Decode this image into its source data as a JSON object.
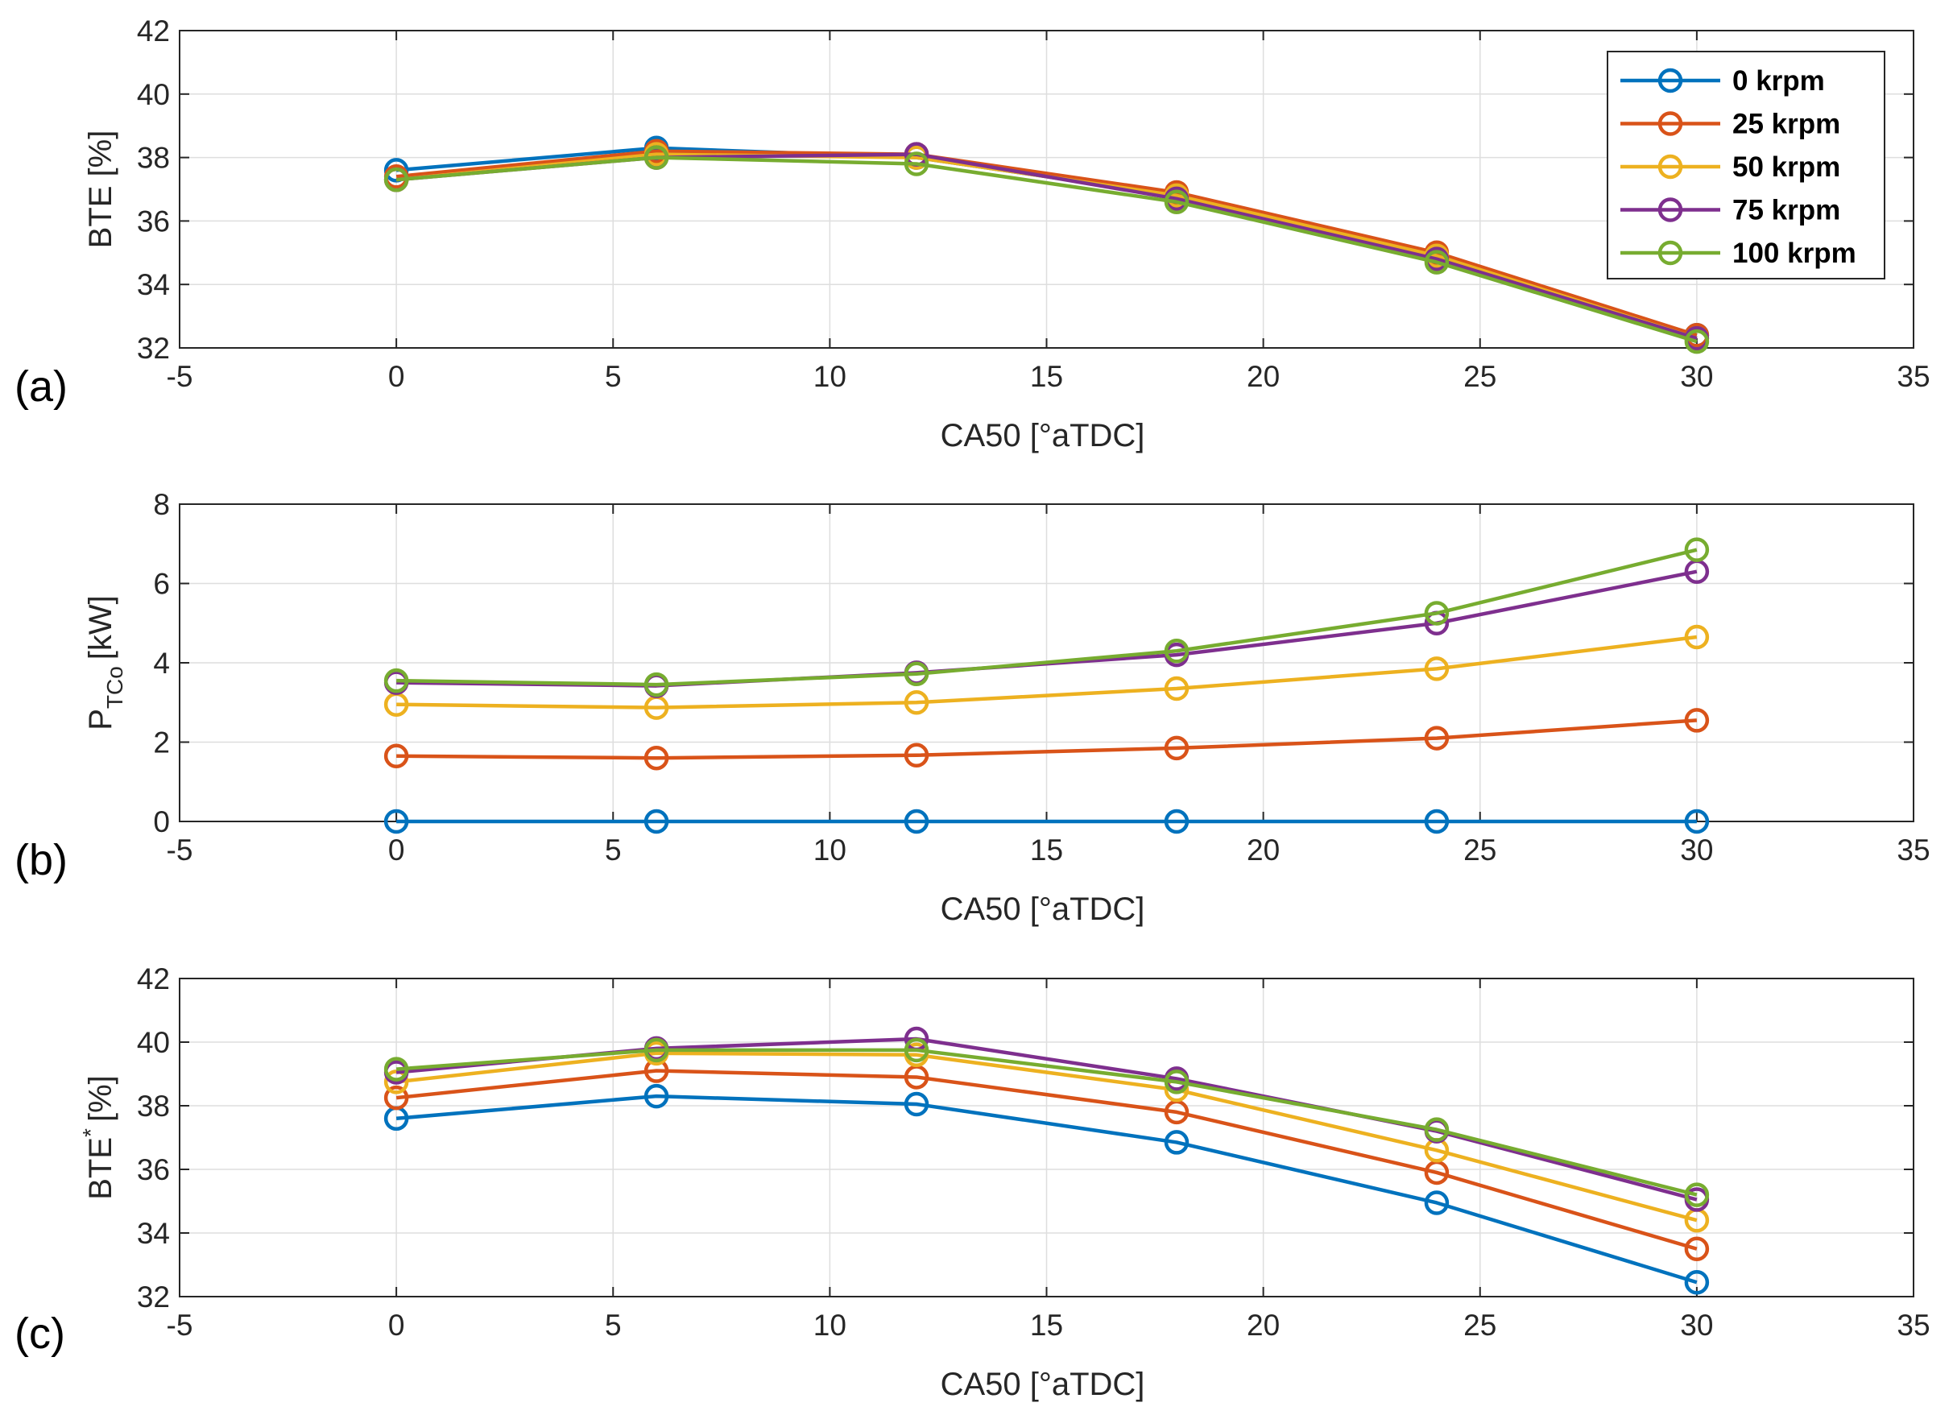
{
  "chart_data": [
    {
      "type": "line",
      "panel_label": "(a)",
      "xlabel": "CA50 [°aTDC]",
      "ylabel": "BTE [%]",
      "xlim": [
        -5,
        35
      ],
      "ylim": [
        32,
        42
      ],
      "xticks": [
        -5,
        0,
        5,
        10,
        15,
        20,
        25,
        30,
        35
      ],
      "yticks": [
        32,
        34,
        36,
        38,
        40,
        42
      ],
      "grid": true,
      "legend": "top-right",
      "x": [
        0,
        6,
        12,
        18,
        24,
        30
      ],
      "series": [
        {
          "name": "0 krpm",
          "values": [
            37.6,
            38.3,
            38.0,
            36.8,
            34.9,
            32.4
          ]
        },
        {
          "name": "25 krpm",
          "values": [
            37.4,
            38.2,
            38.1,
            36.9,
            35.0,
            32.4
          ]
        },
        {
          "name": "50 krpm",
          "values": [
            37.3,
            38.1,
            38.0,
            36.8,
            34.9,
            32.3
          ]
        },
        {
          "name": "75 krpm",
          "values": [
            37.3,
            38.0,
            38.1,
            36.7,
            34.8,
            32.3
          ]
        },
        {
          "name": "100 krpm",
          "values": [
            37.3,
            38.0,
            37.8,
            36.6,
            34.7,
            32.2
          ]
        }
      ]
    },
    {
      "type": "line",
      "panel_label": "(b)",
      "xlabel": "CA50 [°aTDC]",
      "ylabel_main": "P",
      "ylabel_sub": "TCo",
      "ylabel_unit": "[kW]",
      "xlim": [
        -5,
        35
      ],
      "ylim": [
        0,
        8
      ],
      "xticks": [
        -5,
        0,
        5,
        10,
        15,
        20,
        25,
        30,
        35
      ],
      "yticks": [
        0,
        2,
        4,
        6,
        8
      ],
      "grid": true,
      "x": [
        0,
        6,
        12,
        18,
        24,
        30
      ],
      "series": [
        {
          "name": "0 krpm",
          "values": [
            0,
            0,
            0,
            0,
            0,
            0
          ]
        },
        {
          "name": "25 krpm",
          "values": [
            1.65,
            1.6,
            1.67,
            1.85,
            2.1,
            2.55
          ]
        },
        {
          "name": "50 krpm",
          "values": [
            2.95,
            2.87,
            3.0,
            3.35,
            3.85,
            4.65
          ]
        },
        {
          "name": "75 krpm",
          "values": [
            3.5,
            3.42,
            3.75,
            4.2,
            5.0,
            6.3
          ]
        },
        {
          "name": "100 krpm",
          "values": [
            3.55,
            3.45,
            3.72,
            4.3,
            5.25,
            6.85
          ]
        }
      ]
    },
    {
      "type": "line",
      "panel_label": "(c)",
      "xlabel": "CA50 [°aTDC]",
      "ylabel_main": "BTE",
      "ylabel_sup": "*",
      "ylabel_unit": "[%]",
      "xlim": [
        -5,
        35
      ],
      "ylim": [
        32,
        42
      ],
      "xticks": [
        -5,
        0,
        5,
        10,
        15,
        20,
        25,
        30,
        35
      ],
      "yticks": [
        32,
        34,
        36,
        38,
        40,
        42
      ],
      "grid": true,
      "x": [
        0,
        6,
        12,
        18,
        24,
        30
      ],
      "series": [
        {
          "name": "0 krpm",
          "values": [
            37.6,
            38.3,
            38.05,
            36.85,
            34.95,
            32.45
          ]
        },
        {
          "name": "25 krpm",
          "values": [
            38.25,
            39.1,
            38.9,
            37.8,
            35.9,
            33.5
          ]
        },
        {
          "name": "50 krpm",
          "values": [
            38.75,
            39.65,
            39.6,
            38.5,
            36.6,
            34.4
          ]
        },
        {
          "name": "75 krpm",
          "values": [
            39.05,
            39.8,
            40.1,
            38.85,
            37.2,
            35.05
          ]
        },
        {
          "name": "100 krpm",
          "values": [
            39.15,
            39.75,
            39.75,
            38.75,
            37.25,
            35.2
          ]
        }
      ]
    }
  ],
  "legend": {
    "entries": [
      "0 krpm",
      "25 krpm",
      "50 krpm",
      "75 krpm",
      "100 krpm"
    ]
  },
  "colors": {
    "0 krpm": "#0072BD",
    "25 krpm": "#D95319",
    "50 krpm": "#EDB120",
    "75 krpm": "#7E2F8E",
    "100 krpm": "#77AC30"
  }
}
